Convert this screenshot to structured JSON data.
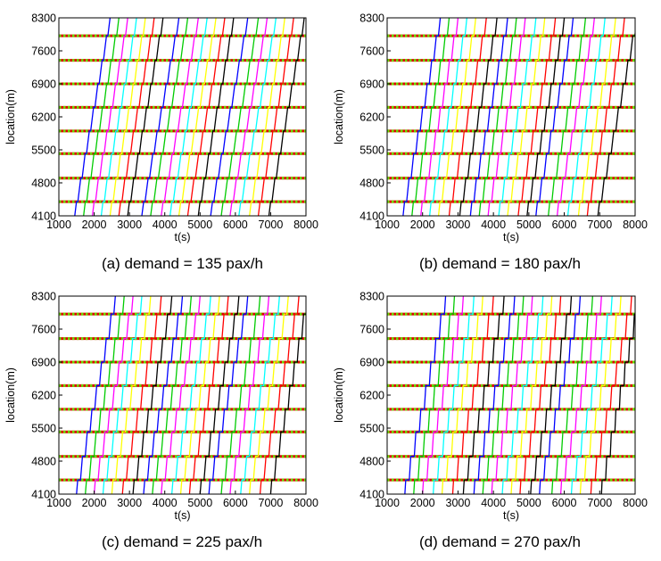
{
  "chart_data": [
    {
      "type": "line",
      "caption": "(a) demand = 135 pax/h",
      "xlabel": "t(s)",
      "ylabel": "location(m)",
      "xlim": [
        1000,
        8000
      ],
      "ylim": [
        4100,
        8300
      ],
      "xticks": [
        1000,
        2000,
        3000,
        4000,
        5000,
        6000,
        7000,
        8000
      ],
      "yticks": [
        4100,
        4800,
        5500,
        6200,
        6900,
        7600,
        8300
      ],
      "stations": [
        4400,
        4900,
        5420,
        5900,
        6400,
        6900,
        7400,
        7920
      ],
      "dwell": 40,
      "series_colors": [
        "#0000ff",
        "#00cc00",
        "#ff00ff",
        "#00ffff",
        "#ffff00",
        "#ff0000",
        "#000000"
      ],
      "trajectories": [
        {
          "start": 1450,
          "end": 2450
        },
        {
          "start": 1700,
          "end": 2700
        },
        {
          "start": 1950,
          "end": 2950
        },
        {
          "start": 2200,
          "end": 3200
        },
        {
          "start": 2450,
          "end": 3450
        },
        {
          "start": 2700,
          "end": 3700
        },
        {
          "start": 2950,
          "end": 3950
        },
        {
          "start": 3350,
          "end": 4400
        },
        {
          "start": 3600,
          "end": 4650
        },
        {
          "start": 3900,
          "end": 4950
        },
        {
          "start": 4150,
          "end": 5200
        },
        {
          "start": 4400,
          "end": 5450
        },
        {
          "start": 4650,
          "end": 5700
        },
        {
          "start": 4950,
          "end": 5950
        },
        {
          "start": 5300,
          "end": 6350
        },
        {
          "start": 5600,
          "end": 6650
        },
        {
          "start": 5850,
          "end": 6900
        },
        {
          "start": 6100,
          "end": 7150
        },
        {
          "start": 6400,
          "end": 7400
        },
        {
          "start": 6650,
          "end": 7650
        },
        {
          "start": 6950,
          "end": 7950
        }
      ]
    },
    {
      "type": "line",
      "caption": "(b) demand = 180 pax/h",
      "xlabel": "t(s)",
      "ylabel": "location(m)",
      "xlim": [
        1000,
        8000
      ],
      "ylim": [
        4100,
        8300
      ],
      "xticks": [
        1000,
        2000,
        3000,
        4000,
        5000,
        6000,
        7000,
        8000
      ],
      "yticks": [
        4100,
        4800,
        5500,
        6200,
        6900,
        7600,
        8300
      ],
      "stations": [
        4400,
        4900,
        5420,
        5900,
        6400,
        6900,
        7400,
        7920
      ],
      "dwell": 60,
      "series_colors": [
        "#0000ff",
        "#00cc00",
        "#ff00ff",
        "#00ffff",
        "#ffff00",
        "#ff0000",
        "#000000"
      ],
      "trajectories": [
        {
          "start": 1450,
          "end": 2500
        },
        {
          "start": 1700,
          "end": 2750
        },
        {
          "start": 1950,
          "end": 3000
        },
        {
          "start": 2200,
          "end": 3250
        },
        {
          "start": 2450,
          "end": 3500
        },
        {
          "start": 2750,
          "end": 3800
        },
        {
          "start": 3050,
          "end": 4100
        },
        {
          "start": 3350,
          "end": 4400
        },
        {
          "start": 3600,
          "end": 4650
        },
        {
          "start": 3850,
          "end": 4900
        },
        {
          "start": 4150,
          "end": 5200
        },
        {
          "start": 4400,
          "end": 5450
        },
        {
          "start": 4700,
          "end": 5750
        },
        {
          "start": 4950,
          "end": 6000
        },
        {
          "start": 5200,
          "end": 6250
        },
        {
          "start": 5550,
          "end": 6600
        },
        {
          "start": 5800,
          "end": 6850
        },
        {
          "start": 6100,
          "end": 7150
        },
        {
          "start": 6400,
          "end": 7450
        },
        {
          "start": 6650,
          "end": 7700
        },
        {
          "start": 6950,
          "end": 8050
        }
      ]
    },
    {
      "type": "line",
      "caption": "(c) demand = 225 pax/h",
      "xlabel": "t(s)",
      "ylabel": "location(m)",
      "xlim": [
        1000,
        8000
      ],
      "ylim": [
        4100,
        8300
      ],
      "xticks": [
        1000,
        2000,
        3000,
        4000,
        5000,
        6000,
        7000,
        8000
      ],
      "yticks": [
        4100,
        4800,
        5500,
        6200,
        6900,
        7600,
        8300
      ],
      "stations": [
        4400,
        4900,
        5420,
        5900,
        6400,
        6900,
        7400,
        7920
      ],
      "dwell": 80,
      "series_colors": [
        "#0000ff",
        "#00cc00",
        "#ff00ff",
        "#00ffff",
        "#ffff00",
        "#ff0000",
        "#000000"
      ],
      "trajectories": [
        {
          "start": 1500,
          "end": 2600
        },
        {
          "start": 1750,
          "end": 2850
        },
        {
          "start": 2000,
          "end": 3100
        },
        {
          "start": 2250,
          "end": 3350
        },
        {
          "start": 2500,
          "end": 3600
        },
        {
          "start": 2800,
          "end": 3900
        },
        {
          "start": 3100,
          "end": 4200
        },
        {
          "start": 3400,
          "end": 4500
        },
        {
          "start": 3650,
          "end": 4750
        },
        {
          "start": 3900,
          "end": 5000
        },
        {
          "start": 4200,
          "end": 5300
        },
        {
          "start": 4450,
          "end": 5550
        },
        {
          "start": 4700,
          "end": 5800
        },
        {
          "start": 5000,
          "end": 6100
        },
        {
          "start": 5250,
          "end": 6350
        },
        {
          "start": 5600,
          "end": 6700
        },
        {
          "start": 5850,
          "end": 6950
        },
        {
          "start": 6150,
          "end": 7250
        },
        {
          "start": 6400,
          "end": 7500
        },
        {
          "start": 6700,
          "end": 7800
        },
        {
          "start": 7000,
          "end": 8050
        }
      ]
    },
    {
      "type": "line",
      "caption": "(d) demand = 270 pax/h",
      "xlabel": "t(s)",
      "ylabel": "location(m)",
      "xlim": [
        1000,
        8000
      ],
      "ylim": [
        4100,
        8300
      ],
      "xticks": [
        1000,
        2000,
        3000,
        4000,
        5000,
        6000,
        7000,
        8000
      ],
      "yticks": [
        4100,
        4800,
        5500,
        6200,
        6900,
        7600,
        8300
      ],
      "stations": [
        4400,
        4900,
        5420,
        5900,
        6400,
        6900,
        7400,
        7920
      ],
      "dwell": 100,
      "series_colors": [
        "#0000ff",
        "#00cc00",
        "#ff00ff",
        "#00ffff",
        "#ffff00",
        "#ff0000",
        "#000000"
      ],
      "trajectories": [
        {
          "start": 1500,
          "end": 2650
        },
        {
          "start": 1750,
          "end": 2900
        },
        {
          "start": 2000,
          "end": 3150
        },
        {
          "start": 2300,
          "end": 3450
        },
        {
          "start": 2550,
          "end": 3700
        },
        {
          "start": 2850,
          "end": 4000
        },
        {
          "start": 3150,
          "end": 4300
        },
        {
          "start": 3450,
          "end": 4600
        },
        {
          "start": 3700,
          "end": 4850
        },
        {
          "start": 3950,
          "end": 5100
        },
        {
          "start": 4250,
          "end": 5400
        },
        {
          "start": 4500,
          "end": 5650
        },
        {
          "start": 4750,
          "end": 5900
        },
        {
          "start": 5050,
          "end": 6200
        },
        {
          "start": 5300,
          "end": 6450
        },
        {
          "start": 5650,
          "end": 6800
        },
        {
          "start": 5900,
          "end": 7050
        },
        {
          "start": 6200,
          "end": 7350
        },
        {
          "start": 6450,
          "end": 7600
        },
        {
          "start": 6750,
          "end": 7900
        },
        {
          "start": 7050,
          "end": 8100
        }
      ]
    }
  ]
}
